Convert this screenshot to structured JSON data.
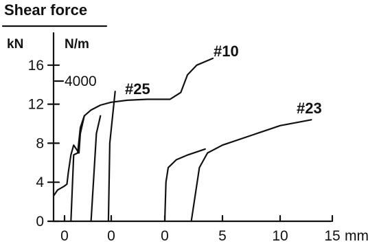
{
  "chart_data": {
    "type": "line",
    "title": "Shear force",
    "ylabel_primary_unit": "kN",
    "ylabel_secondary_unit": "N/m",
    "secondary_tick_label": "4000",
    "y_ticks": [
      "0",
      "4",
      "8",
      "12",
      "16"
    ],
    "ylim": [
      0,
      17
    ],
    "x_ticks": [
      "0",
      "0",
      "0",
      "0",
      "5",
      "10",
      "15"
    ],
    "xlabel": "mm",
    "series": [
      {
        "name": "#10",
        "x_offset_mm": 0,
        "points": [
          [
            0,
            2.6
          ],
          [
            0.3,
            3.2
          ],
          [
            0.8,
            3.6
          ],
          [
            1.0,
            3.8
          ],
          [
            1.1,
            5.0
          ],
          [
            1.3,
            6.8
          ],
          [
            1.5,
            7.8
          ],
          [
            1.9,
            7.0
          ],
          [
            2.0,
            9.0
          ],
          [
            2.3,
            10.8
          ],
          [
            2.8,
            11.4
          ],
          [
            3.5,
            11.9
          ],
          [
            4.3,
            12.2
          ],
          [
            5.5,
            12.4
          ],
          [
            7.0,
            12.5
          ],
          [
            8.7,
            12.5
          ],
          [
            9.5,
            13.2
          ],
          [
            10.0,
            15.0
          ],
          [
            10.7,
            16.0
          ],
          [
            11.9,
            16.7
          ]
        ]
      },
      {
        "name": "#25",
        "x_offset_mm": 0,
        "points": [
          [
            1.3,
            0.0
          ],
          [
            1.5,
            6.8
          ],
          [
            1.8,
            7.0
          ],
          [
            2.0,
            9.6
          ],
          [
            2.3,
            10.8
          ],
          [
            2.8,
            0.0
          ],
          [
            3.2,
            9.0
          ],
          [
            3.5,
            10.8
          ],
          [
            4.1,
            0.0
          ],
          [
            4.2,
            8.0
          ],
          [
            4.6,
            13.3
          ]
        ]
      },
      {
        "name": "#23",
        "x_offset_mm": 0,
        "points": [
          [
            0,
            0.0
          ],
          [
            0.1,
            4.0
          ],
          [
            0.3,
            5.5
          ],
          [
            1.0,
            6.3
          ],
          [
            2.0,
            6.8
          ],
          [
            3.5,
            7.4
          ],
          [
            2.3,
            0.0
          ],
          [
            3.0,
            5.5
          ],
          [
            3.7,
            7.0
          ],
          [
            5.0,
            7.8
          ],
          [
            7.5,
            8.8
          ],
          [
            10.0,
            9.8
          ],
          [
            12.7,
            10.4
          ]
        ]
      }
    ],
    "grid": false,
    "legend": "none"
  }
}
